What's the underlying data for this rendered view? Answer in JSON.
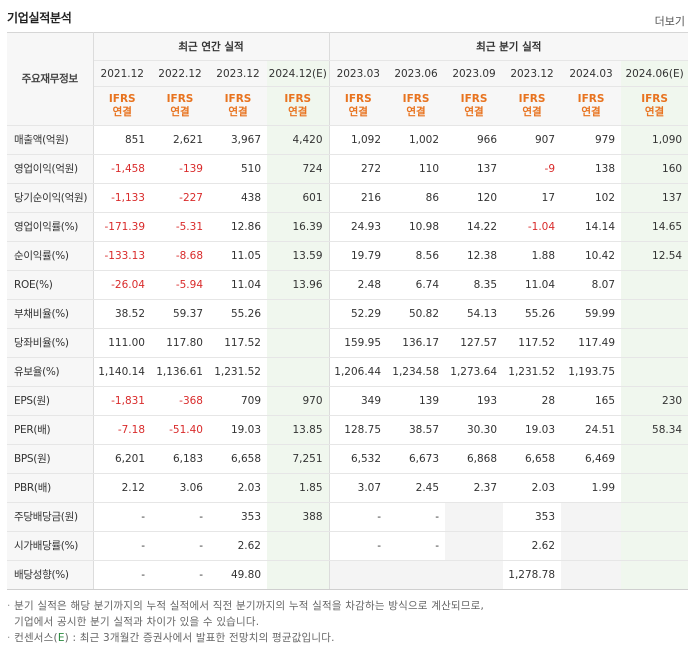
{
  "header": {
    "title": "기업실적분석",
    "more": "더보기"
  },
  "table": {
    "corner_label": "주요재무정보",
    "group_annual": "최근 연간 실적",
    "group_quarter": "최근 분기 실적",
    "periods": [
      {
        "label": "2021.12",
        "est": false
      },
      {
        "label": "2022.12",
        "est": false
      },
      {
        "label": "2023.12",
        "est": false
      },
      {
        "label": "2024.12(E)",
        "est": true
      },
      {
        "label": "2023.03",
        "est": false
      },
      {
        "label": "2023.06",
        "est": false
      },
      {
        "label": "2023.09",
        "est": false
      },
      {
        "label": "2023.12",
        "est": false
      },
      {
        "label": "2024.03",
        "est": false
      },
      {
        "label": "2024.06(E)",
        "est": true
      }
    ],
    "basis_top": "IFRS",
    "basis_bottom": "연결",
    "rows": [
      {
        "label": "매출액(억원)",
        "values": [
          "851",
          "2,621",
          "3,967",
          "4,420",
          "1,092",
          "1,002",
          "966",
          "907",
          "979",
          "1,090"
        ]
      },
      {
        "label": "영업이익(억원)",
        "values": [
          "-1,458",
          "-139",
          "510",
          "724",
          "272",
          "110",
          "137",
          "-9",
          "138",
          "160"
        ]
      },
      {
        "label": "당기순이익(억원)",
        "values": [
          "-1,133",
          "-227",
          "438",
          "601",
          "216",
          "86",
          "120",
          "17",
          "102",
          "137"
        ]
      },
      {
        "label": "영업이익률(%)",
        "values": [
          "-171.39",
          "-5.31",
          "12.86",
          "16.39",
          "24.93",
          "10.98",
          "14.22",
          "-1.04",
          "14.14",
          "14.65"
        ]
      },
      {
        "label": "순이익률(%)",
        "values": [
          "-133.13",
          "-8.68",
          "11.05",
          "13.59",
          "19.79",
          "8.56",
          "12.38",
          "1.88",
          "10.42",
          "12.54"
        ]
      },
      {
        "label": "ROE(%)",
        "values": [
          "-26.04",
          "-5.94",
          "11.04",
          "13.96",
          "2.48",
          "6.74",
          "8.35",
          "11.04",
          "8.07",
          ""
        ]
      },
      {
        "label": "부채비율(%)",
        "values": [
          "38.52",
          "59.37",
          "55.26",
          "",
          "52.29",
          "50.82",
          "54.13",
          "55.26",
          "59.99",
          ""
        ]
      },
      {
        "label": "당좌비율(%)",
        "values": [
          "111.00",
          "117.80",
          "117.52",
          "",
          "159.95",
          "136.17",
          "127.57",
          "117.52",
          "117.49",
          ""
        ]
      },
      {
        "label": "유보율(%)",
        "values": [
          "1,140.14",
          "1,136.61",
          "1,231.52",
          "",
          "1,206.44",
          "1,234.58",
          "1,273.64",
          "1,231.52",
          "1,193.75",
          ""
        ]
      },
      {
        "label": "EPS(원)",
        "values": [
          "-1,831",
          "-368",
          "709",
          "970",
          "349",
          "139",
          "193",
          "28",
          "165",
          "230"
        ]
      },
      {
        "label": "PER(배)",
        "values": [
          "-7.18",
          "-51.40",
          "19.03",
          "13.85",
          "128.75",
          "38.57",
          "30.30",
          "19.03",
          "24.51",
          "58.34"
        ]
      },
      {
        "label": "BPS(원)",
        "values": [
          "6,201",
          "6,183",
          "6,658",
          "7,251",
          "6,532",
          "6,673",
          "6,868",
          "6,658",
          "6,469",
          ""
        ]
      },
      {
        "label": "PBR(배)",
        "values": [
          "2.12",
          "3.06",
          "2.03",
          "1.85",
          "3.07",
          "2.45",
          "2.37",
          "2.03",
          "1.99",
          ""
        ]
      },
      {
        "label": "주당배당금(원)",
        "values": [
          "-",
          "-",
          "353",
          "388",
          "-",
          "-",
          "",
          "353",
          "",
          ""
        ]
      },
      {
        "label": "시가배당률(%)",
        "values": [
          "-",
          "-",
          "2.62",
          "",
          "-",
          "-",
          "",
          "2.62",
          "",
          ""
        ]
      },
      {
        "label": "배당성향(%)",
        "values": [
          "-",
          "-",
          "49.80",
          "",
          "",
          "",
          "",
          "1,278.78",
          "",
          ""
        ]
      }
    ]
  },
  "notes": {
    "line1": "분기 실적은 해당 분기까지의 누적 실적에서 직전 분기까지의 누적 실적을 차감하는 방식으로 계산되므로,",
    "line2": "기업에서 공시한 분기 실적과 차이가 있을 수 있습니다.",
    "line3_pre": "컨센서스(",
    "line3_e": "E",
    "line3_post": ") : 최근 3개월간 증권사에서 발표한 전망치의 평균값입니다."
  },
  "colors": {
    "negative": "#d92b2b",
    "ifrs": "#e8731f",
    "estimate_bg": "#f0f7ee"
  }
}
